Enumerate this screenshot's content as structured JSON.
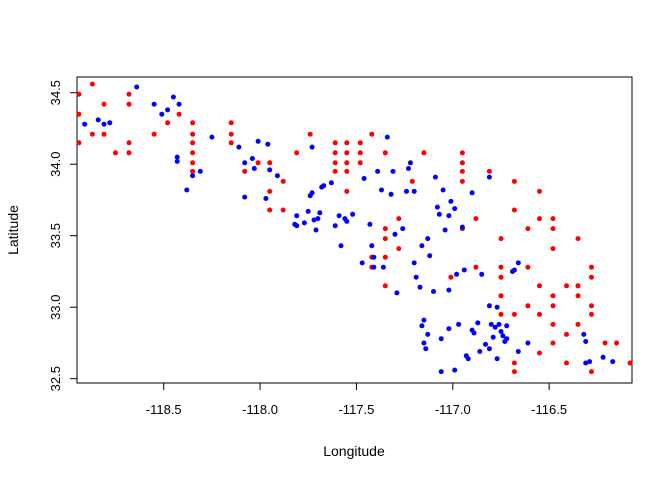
{
  "chart_data": {
    "type": "scatter",
    "title": "",
    "xlabel": "Longitude",
    "ylabel": "Latitude",
    "xlim": [
      -118.95,
      -116.07
    ],
    "ylim": [
      32.47,
      34.61
    ],
    "xticks": [
      -118.5,
      -118.0,
      -117.5,
      -117.0,
      -116.5
    ],
    "xtick_labels": [
      "-118.5",
      "-118.0",
      "-117.5",
      "-117.0",
      "-116.5"
    ],
    "yticks": [
      32.5,
      33.0,
      33.5,
      34.0,
      34.5
    ],
    "ytick_labels": [
      "32.5",
      "33.0",
      "33.5",
      "34.0",
      "34.5"
    ],
    "grid": false,
    "legend": "none",
    "series": [
      {
        "color": "#ff0000",
        "points": [
          [
            -118.94,
            34.49
          ],
          [
            -118.94,
            34.35
          ],
          [
            -118.94,
            34.15
          ],
          [
            -118.87,
            34.56
          ],
          [
            -118.87,
            34.21
          ],
          [
            -118.81,
            34.42
          ],
          [
            -118.81,
            34.21
          ],
          [
            -118.75,
            34.08
          ],
          [
            -118.68,
            34.49
          ],
          [
            -118.68,
            34.42
          ],
          [
            -118.68,
            34.15
          ],
          [
            -118.68,
            34.08
          ],
          [
            -118.55,
            34.21
          ],
          [
            -118.48,
            34.29
          ],
          [
            -118.42,
            34.35
          ],
          [
            -118.35,
            34.29
          ],
          [
            -118.35,
            34.21
          ],
          [
            -118.35,
            34.15
          ],
          [
            -118.35,
            34.08
          ],
          [
            -118.35,
            34.01
          ],
          [
            -118.35,
            33.95
          ],
          [
            -118.15,
            34.29
          ],
          [
            -118.15,
            34.21
          ],
          [
            -118.15,
            34.15
          ],
          [
            -118.08,
            33.95
          ],
          [
            -118.01,
            34.01
          ],
          [
            -117.95,
            34.01
          ],
          [
            -117.95,
            33.81
          ],
          [
            -117.95,
            33.68
          ],
          [
            -117.88,
            33.88
          ],
          [
            -117.88,
            33.68
          ],
          [
            -117.81,
            34.08
          ],
          [
            -117.74,
            34.21
          ],
          [
            -117.61,
            34.15
          ],
          [
            -117.61,
            34.08
          ],
          [
            -117.61,
            34.01
          ],
          [
            -117.61,
            33.95
          ],
          [
            -117.55,
            34.15
          ],
          [
            -117.55,
            34.08
          ],
          [
            -117.55,
            34.01
          ],
          [
            -117.55,
            33.95
          ],
          [
            -117.55,
            33.81
          ],
          [
            -117.48,
            34.15
          ],
          [
            -117.48,
            34.08
          ],
          [
            -117.48,
            34.01
          ],
          [
            -117.42,
            34.21
          ],
          [
            -117.42,
            33.35
          ],
          [
            -117.42,
            33.28
          ],
          [
            -117.35,
            34.08
          ],
          [
            -117.35,
            33.55
          ],
          [
            -117.35,
            33.48
          ],
          [
            -117.35,
            33.35
          ],
          [
            -117.35,
            33.15
          ],
          [
            -117.28,
            33.62
          ],
          [
            -117.28,
            33.41
          ],
          [
            -117.21,
            33.88
          ],
          [
            -117.15,
            34.08
          ],
          [
            -117.01,
            33.21
          ],
          [
            -116.95,
            34.08
          ],
          [
            -116.95,
            34.01
          ],
          [
            -116.95,
            33.95
          ],
          [
            -116.95,
            33.88
          ],
          [
            -116.95,
            33.55
          ],
          [
            -116.88,
            33.62
          ],
          [
            -116.88,
            33.28
          ],
          [
            -116.81,
            33.95
          ],
          [
            -116.75,
            33.48
          ],
          [
            -116.75,
            33.28
          ],
          [
            -116.75,
            33.21
          ],
          [
            -116.75,
            33.08
          ],
          [
            -116.75,
            32.95
          ],
          [
            -116.68,
            33.88
          ],
          [
            -116.68,
            33.68
          ],
          [
            -116.68,
            32.95
          ],
          [
            -116.68,
            32.61
          ],
          [
            -116.68,
            32.55
          ],
          [
            -116.61,
            33.55
          ],
          [
            -116.61,
            33.28
          ],
          [
            -116.61,
            33.01
          ],
          [
            -116.55,
            33.81
          ],
          [
            -116.55,
            33.62
          ],
          [
            -116.55,
            33.15
          ],
          [
            -116.55,
            32.95
          ],
          [
            -116.55,
            32.68
          ],
          [
            -116.48,
            33.62
          ],
          [
            -116.48,
            33.55
          ],
          [
            -116.48,
            33.41
          ],
          [
            -116.48,
            33.08
          ],
          [
            -116.48,
            33.01
          ],
          [
            -116.48,
            32.88
          ],
          [
            -116.48,
            32.75
          ],
          [
            -116.41,
            33.15
          ],
          [
            -116.41,
            32.81
          ],
          [
            -116.41,
            32.61
          ],
          [
            -116.35,
            33.48
          ],
          [
            -116.35,
            33.15
          ],
          [
            -116.35,
            33.08
          ],
          [
            -116.35,
            32.88
          ],
          [
            -116.28,
            33.28
          ],
          [
            -116.28,
            33.21
          ],
          [
            -116.28,
            33.01
          ],
          [
            -116.28,
            32.95
          ],
          [
            -116.28,
            32.55
          ],
          [
            -116.21,
            32.75
          ],
          [
            -116.15,
            32.75
          ],
          [
            -116.08,
            32.61
          ]
        ]
      },
      {
        "color": "#0000ff",
        "points": [
          [
            -118.91,
            34.28
          ],
          [
            -118.84,
            34.31
          ],
          [
            -118.81,
            34.28
          ],
          [
            -118.78,
            34.29
          ],
          [
            -118.64,
            34.54
          ],
          [
            -118.55,
            34.42
          ],
          [
            -118.51,
            34.35
          ],
          [
            -118.48,
            34.38
          ],
          [
            -118.45,
            34.47
          ],
          [
            -118.43,
            34.05
          ],
          [
            -118.43,
            34.02
          ],
          [
            -118.42,
            34.42
          ],
          [
            -118.38,
            33.82
          ],
          [
            -118.35,
            33.92
          ],
          [
            -118.31,
            33.95
          ],
          [
            -118.25,
            34.19
          ],
          [
            -118.11,
            34.12
          ],
          [
            -118.08,
            34.01
          ],
          [
            -118.08,
            33.77
          ],
          [
            -118.04,
            34.04
          ],
          [
            -118.03,
            33.97
          ],
          [
            -118.01,
            34.16
          ],
          [
            -117.95,
            33.96
          ],
          [
            -117.96,
            34.14
          ],
          [
            -117.97,
            33.76
          ],
          [
            -117.91,
            33.92
          ],
          [
            -117.82,
            33.58
          ],
          [
            -117.81,
            33.57
          ],
          [
            -117.81,
            33.64
          ],
          [
            -117.77,
            33.59
          ],
          [
            -117.75,
            33.67
          ],
          [
            -117.74,
            33.78
          ],
          [
            -117.73,
            33.8
          ],
          [
            -117.73,
            34.12
          ],
          [
            -117.72,
            33.61
          ],
          [
            -117.71,
            33.54
          ],
          [
            -117.7,
            33.62
          ],
          [
            -117.69,
            33.66
          ],
          [
            -117.68,
            33.84
          ],
          [
            -117.67,
            33.85
          ],
          [
            -117.63,
            33.87
          ],
          [
            -117.61,
            33.57
          ],
          [
            -117.59,
            33.64
          ],
          [
            -117.56,
            33.62
          ],
          [
            -117.55,
            33.6
          ],
          [
            -117.58,
            33.43
          ],
          [
            -117.52,
            33.65
          ],
          [
            -117.47,
            33.31
          ],
          [
            -117.46,
            33.9
          ],
          [
            -117.43,
            33.58
          ],
          [
            -117.42,
            33.43
          ],
          [
            -117.41,
            33.35
          ],
          [
            -117.41,
            33.28
          ],
          [
            -117.39,
            33.95
          ],
          [
            -117.37,
            33.82
          ],
          [
            -117.36,
            33.28
          ],
          [
            -117.34,
            34.19
          ],
          [
            -117.32,
            33.79
          ],
          [
            -117.31,
            33.95
          ],
          [
            -117.3,
            33.51
          ],
          [
            -117.29,
            33.1
          ],
          [
            -117.26,
            33.55
          ],
          [
            -117.24,
            33.81
          ],
          [
            -117.23,
            33.97
          ],
          [
            -117.22,
            34.01
          ],
          [
            -117.2,
            33.31
          ],
          [
            -117.2,
            33.81
          ],
          [
            -117.19,
            33.21
          ],
          [
            -117.17,
            33.14
          ],
          [
            -117.16,
            33.43
          ],
          [
            -117.16,
            32.87
          ],
          [
            -117.15,
            32.91
          ],
          [
            -117.15,
            32.75
          ],
          [
            -117.14,
            32.71
          ],
          [
            -117.13,
            33.48
          ],
          [
            -117.13,
            32.81
          ],
          [
            -117.12,
            33.36
          ],
          [
            -117.1,
            33.11
          ],
          [
            -117.09,
            33.91
          ],
          [
            -117.08,
            33.7
          ],
          [
            -117.07,
            33.65
          ],
          [
            -117.06,
            32.78
          ],
          [
            -117.06,
            32.55
          ],
          [
            -117.05,
            33.82
          ],
          [
            -117.04,
            33.54
          ],
          [
            -117.02,
            33.64
          ],
          [
            -117.02,
            33.12
          ],
          [
            -117.02,
            32.85
          ],
          [
            -117.01,
            33.74
          ],
          [
            -116.99,
            33.69
          ],
          [
            -116.99,
            32.56
          ],
          [
            -116.98,
            33.23
          ],
          [
            -116.97,
            32.88
          ],
          [
            -116.95,
            33.56
          ],
          [
            -116.94,
            33.26
          ],
          [
            -116.93,
            32.66
          ],
          [
            -116.92,
            32.64
          ],
          [
            -116.9,
            33.8
          ],
          [
            -116.9,
            32.84
          ],
          [
            -116.89,
            32.82
          ],
          [
            -116.87,
            32.89
          ],
          [
            -116.86,
            32.69
          ],
          [
            -116.85,
            33.23
          ],
          [
            -116.83,
            32.74
          ],
          [
            -116.81,
            33.91
          ],
          [
            -116.81,
            33.01
          ],
          [
            -116.81,
            32.71
          ],
          [
            -116.8,
            32.88
          ],
          [
            -116.79,
            32.79
          ],
          [
            -116.78,
            32.86
          ],
          [
            -116.77,
            33.0
          ],
          [
            -116.77,
            32.64
          ],
          [
            -116.76,
            32.88
          ],
          [
            -116.75,
            32.83
          ],
          [
            -116.74,
            32.8
          ],
          [
            -116.73,
            32.76
          ],
          [
            -116.72,
            32.87
          ],
          [
            -116.72,
            32.78
          ],
          [
            -116.69,
            33.25
          ],
          [
            -116.68,
            33.26
          ],
          [
            -116.66,
            33.31
          ],
          [
            -116.66,
            32.69
          ],
          [
            -116.61,
            32.75
          ],
          [
            -116.32,
            32.81
          ],
          [
            -116.31,
            32.76
          ],
          [
            -116.29,
            32.62
          ],
          [
            -116.31,
            32.61
          ],
          [
            -116.22,
            32.65
          ],
          [
            -116.17,
            32.62
          ]
        ]
      }
    ]
  }
}
